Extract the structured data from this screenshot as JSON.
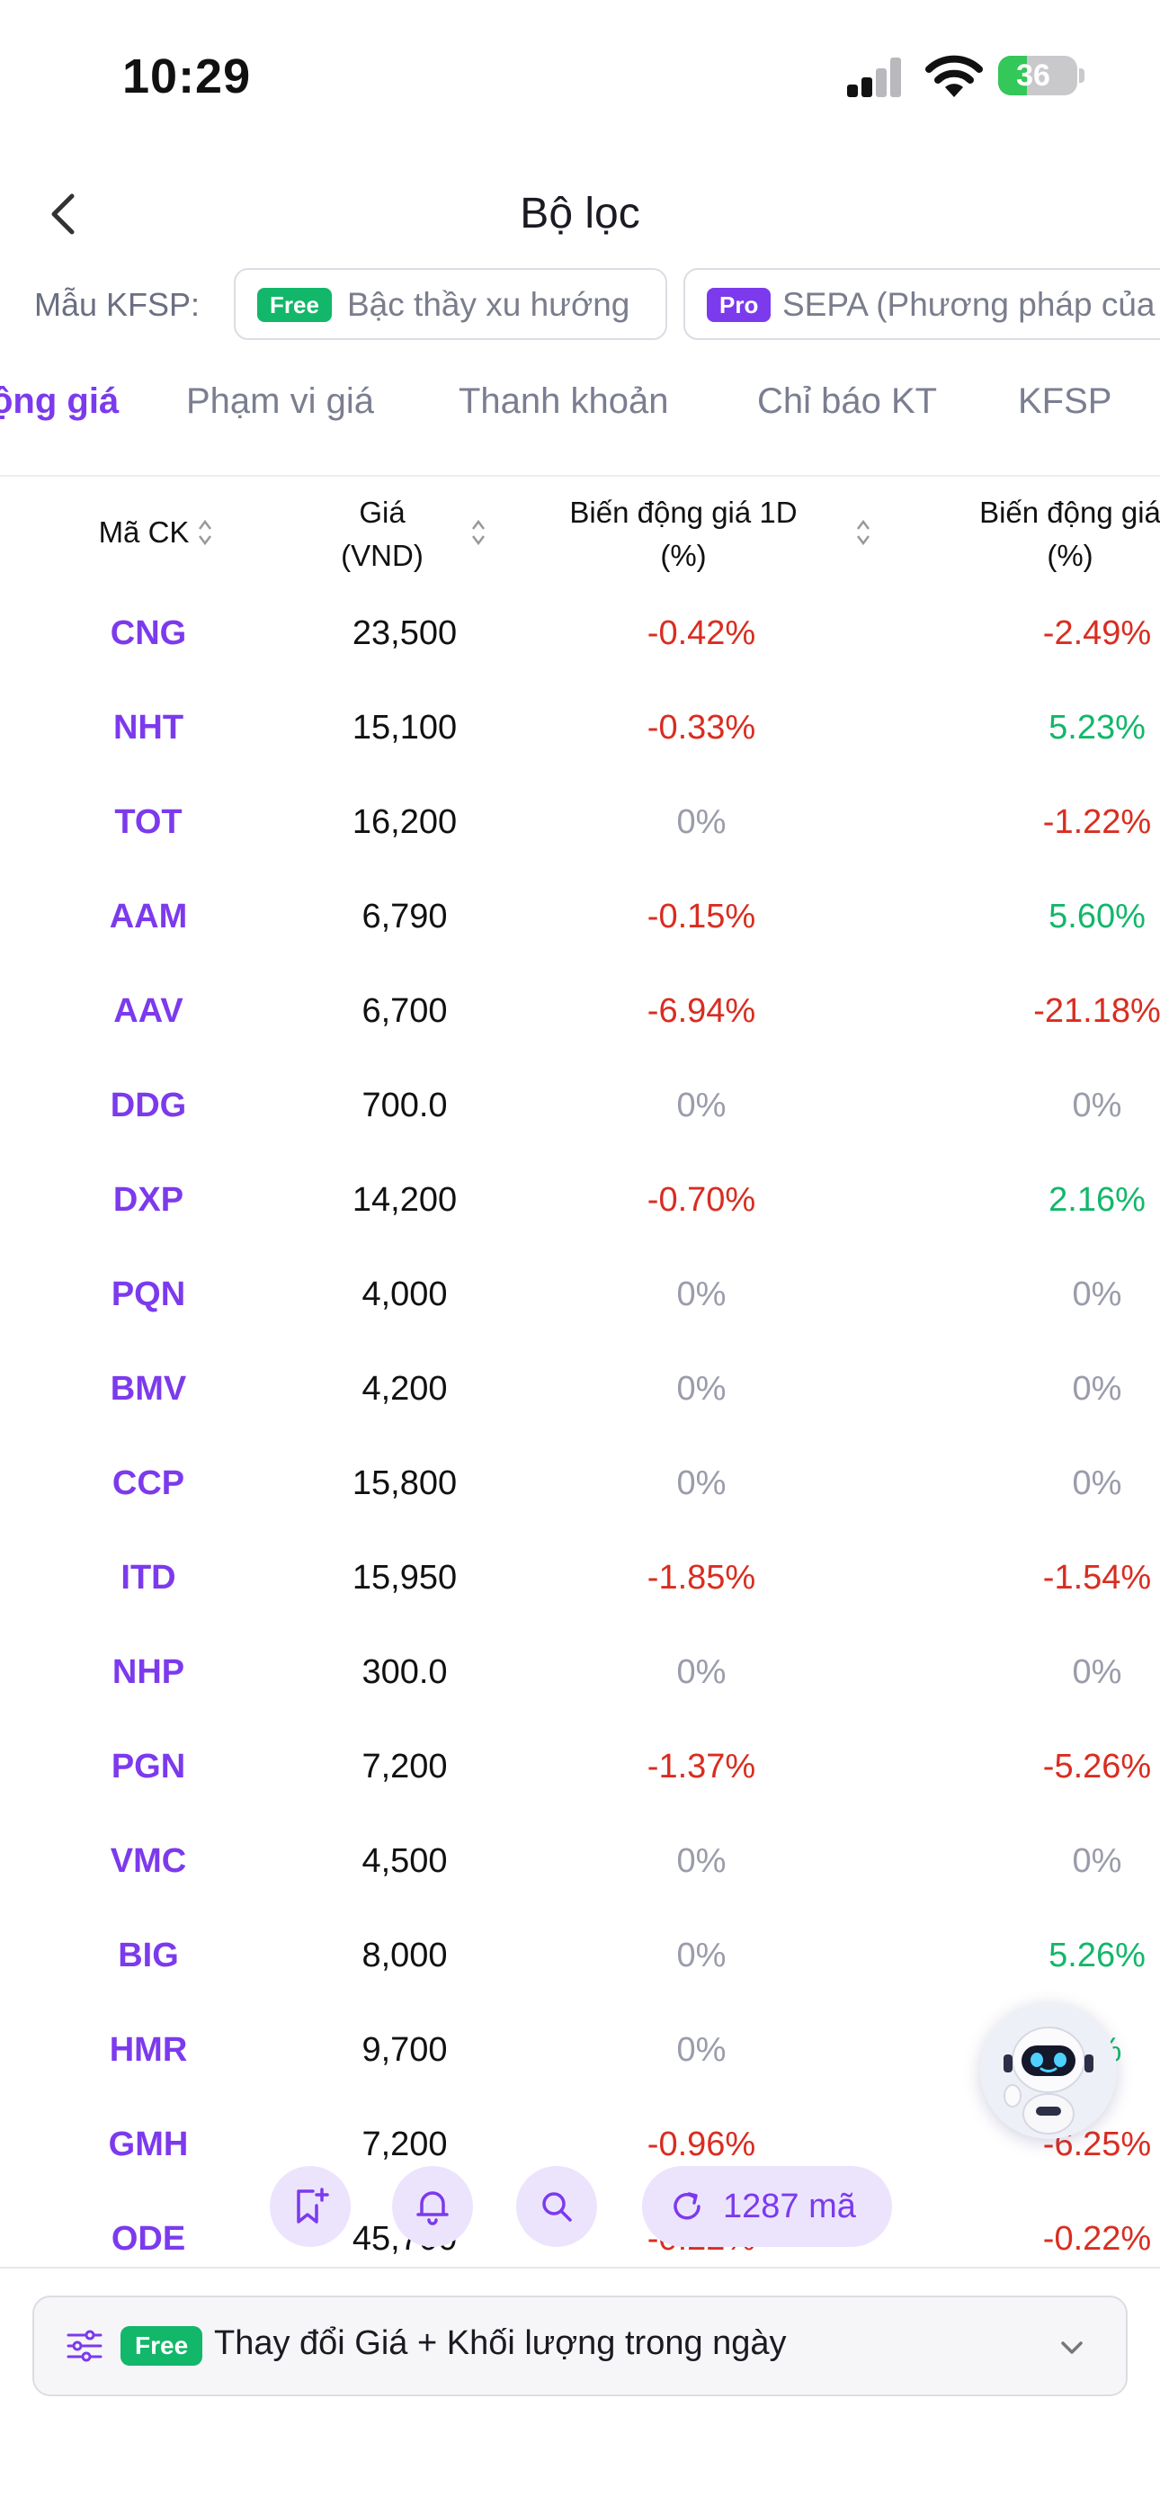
{
  "status_bar": {
    "time": "10:29",
    "battery": "36",
    "battery_level": 0.36
  },
  "header": {
    "title": "Bộ lọc"
  },
  "kfsp": {
    "label": "Mẫu KFSP:",
    "templates": [
      {
        "tag": "Free",
        "name": "Bậc thầy xu hướng"
      },
      {
        "tag": "Pro",
        "name": "SEPA (Phương pháp của"
      }
    ]
  },
  "tabs": [
    {
      "label": "ộng giá",
      "active": true
    },
    {
      "label": "Phạm vi giá",
      "active": false
    },
    {
      "label": "Thanh khoản",
      "active": false
    },
    {
      "label": "Chỉ báo KT",
      "active": false
    },
    {
      "label": "KFSP",
      "active": false
    }
  ],
  "table": {
    "columns": {
      "symbol": "Mã CK",
      "price_line1": "Giá",
      "price_line2": "(VND)",
      "change1d_line1": "Biến động giá 1D",
      "change1d_line2": "(%)",
      "change2_line1": "Biến động giá",
      "change2_line2": "(%)"
    },
    "rows": [
      {
        "symbol": "CNG",
        "price": "23,500",
        "d1": "-0.42%",
        "d2": "-2.49%"
      },
      {
        "symbol": "NHT",
        "price": "15,100",
        "d1": "-0.33%",
        "d2": "5.23%"
      },
      {
        "symbol": "TOT",
        "price": "16,200",
        "d1": "0%",
        "d2": "-1.22%"
      },
      {
        "symbol": "AAM",
        "price": "6,790",
        "d1": "-0.15%",
        "d2": "5.60%"
      },
      {
        "symbol": "AAV",
        "price": "6,700",
        "d1": "-6.94%",
        "d2": "-21.18%"
      },
      {
        "symbol": "DDG",
        "price": "700.0",
        "d1": "0%",
        "d2": "0%"
      },
      {
        "symbol": "DXP",
        "price": "14,200",
        "d1": "-0.70%",
        "d2": "2.16%"
      },
      {
        "symbol": "PQN",
        "price": "4,000",
        "d1": "0%",
        "d2": "0%"
      },
      {
        "symbol": "BMV",
        "price": "4,200",
        "d1": "0%",
        "d2": "0%"
      },
      {
        "symbol": "CCP",
        "price": "15,800",
        "d1": "0%",
        "d2": "0%"
      },
      {
        "symbol": "ITD",
        "price": "15,950",
        "d1": "-1.85%",
        "d2": "-1.54%"
      },
      {
        "symbol": "NHP",
        "price": "300.0",
        "d1": "0%",
        "d2": "0%"
      },
      {
        "symbol": "PGN",
        "price": "7,200",
        "d1": "-1.37%",
        "d2": "-5.26%"
      },
      {
        "symbol": "VMC",
        "price": "4,500",
        "d1": "0%",
        "d2": "0%"
      },
      {
        "symbol": "BIG",
        "price": "8,000",
        "d1": "0%",
        "d2": "5.26%"
      },
      {
        "symbol": "HMR",
        "price": "9,700",
        "d1": "0%",
        "d2": "6%"
      },
      {
        "symbol": "GMH",
        "price": "7,200",
        "d1": "-0.96%",
        "d2": "-6.25%"
      },
      {
        "symbol": "ODE",
        "price": "45,700",
        "d1": "-0.22%",
        "d2": "-0.22%"
      }
    ]
  },
  "actions": {
    "count_label": "1287 mã"
  },
  "filter_bar": {
    "tag": "Free",
    "label": "Thay đổi Giá + Khối lượng trong ngày"
  },
  "colors": {
    "accent": "#7c3aed",
    "negative": "#d92d20",
    "positive": "#12b76a",
    "neutral": "#9a9cab"
  },
  "icons": [
    "back-arrow-icon",
    "bookmark-add-icon",
    "bell-icon",
    "search-icon",
    "refresh-icon",
    "robot-assistant-icon",
    "sliders-icon",
    "chevron-down-icon",
    "sort-icon"
  ]
}
